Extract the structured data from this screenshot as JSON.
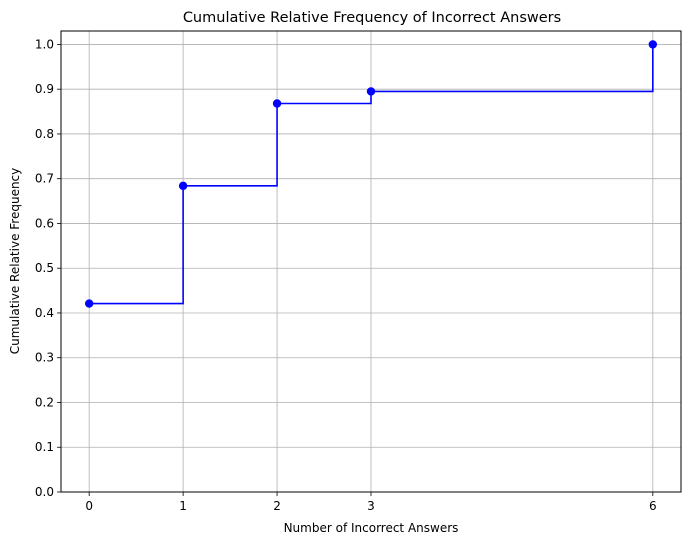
{
  "chart_data": {
    "type": "line",
    "step": "post",
    "title": "Cumulative Relative Frequency of Incorrect Answers",
    "xlabel": "Number of Incorrect Answers",
    "ylabel": "Cumulative Relative Frequency",
    "xlim": [
      -0.3,
      6.3
    ],
    "ylim": [
      0,
      1.03
    ],
    "grid": true,
    "xticks": [
      0,
      1,
      2,
      3,
      6
    ],
    "yticks": [
      0.0,
      0.1,
      0.2,
      0.3,
      0.4,
      0.5,
      0.6,
      0.7,
      0.8,
      0.9,
      1.0
    ],
    "xtick_labels": [
      "0",
      "1",
      "2",
      "3",
      "6"
    ],
    "ytick_labels": [
      "0.0",
      "0.1",
      "0.2",
      "0.3",
      "0.4",
      "0.5",
      "0.6",
      "0.7",
      "0.8",
      "0.9",
      "1.0"
    ],
    "series": [
      {
        "x": [
          0,
          1,
          2,
          3,
          6
        ],
        "y": [
          0.421,
          0.684,
          0.868,
          0.895,
          1.0
        ],
        "color": "#0000ff",
        "marker": "circle"
      }
    ]
  }
}
